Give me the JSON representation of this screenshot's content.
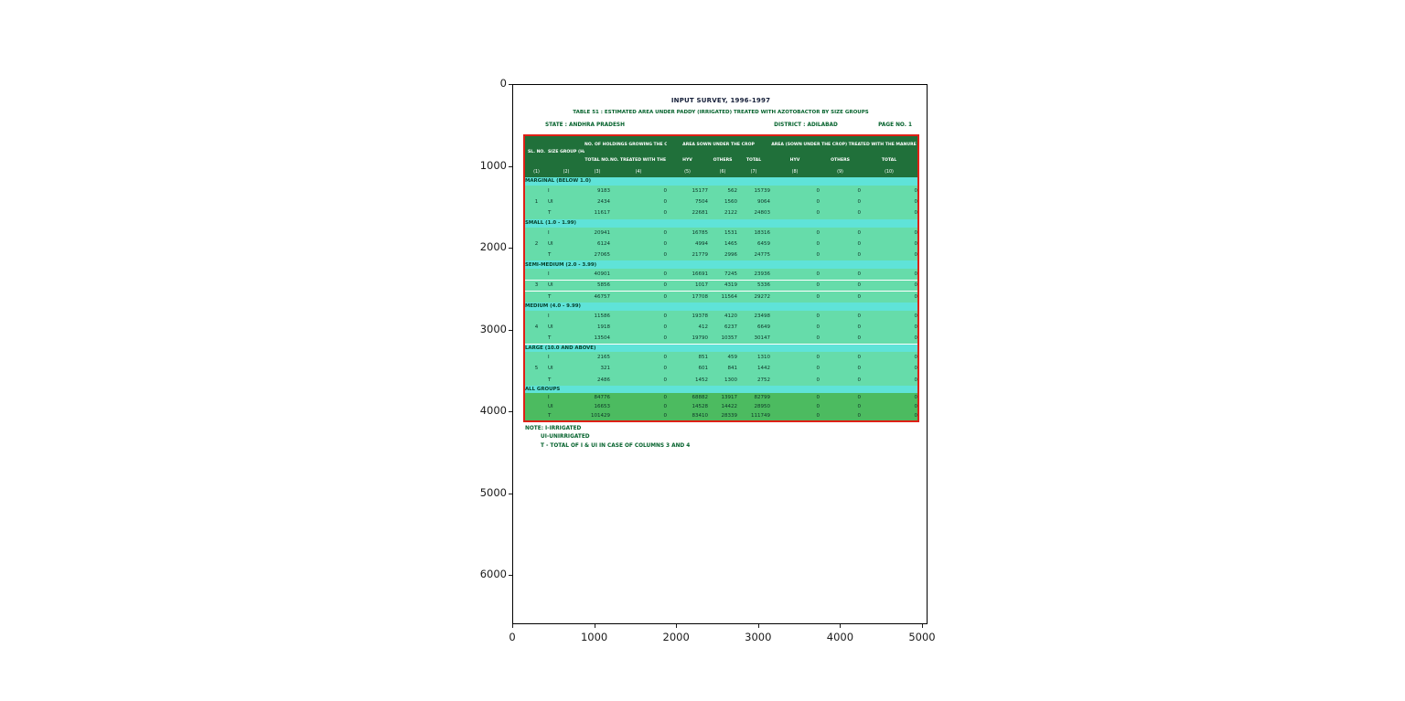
{
  "figure": {
    "x_ticks": [
      "0",
      "1000",
      "2000",
      "3000",
      "4000",
      "5000"
    ],
    "y_ticks": [
      "0",
      "1000",
      "2000",
      "3000",
      "4000",
      "5000",
      "6000"
    ]
  },
  "document": {
    "title": "INPUT SURVEY, 1996-1997",
    "subtitle": "TABLE 51 : ESTIMATED AREA UNDER PADDY (IRRIGATED) TREATED WITH AZOTOBACTOR BY SIZE GROUPS",
    "state": "STATE : ANDHRA PRADESH",
    "district": "DISTRICT : ADILABAD",
    "page": "PAGE NO. 1",
    "note_lines": [
      "NOTE: I-IRRIGATED",
      "UI-UNIRRIGATED",
      "T - TOTAL OF I & UI IN CASE OF COLUMNS 3 AND 4"
    ]
  },
  "table": {
    "header": {
      "sl_no": "SL. NO.",
      "size_group": "SIZE GROUP (HA.)",
      "holdings_group": "NO. OF HOLDINGS GROWING THE CROP",
      "total_no": "TOTAL NO.",
      "treated_no": "NO. TREATED WITH THE MANURE",
      "area_sown_group": "AREA SOWN UNDER THE CROP",
      "area_treated_group": "AREA (SOWN UNDER THE CROP) TREATED WITH THE MANURE",
      "hyv": "HYV",
      "others": "OTHERS",
      "total": "TOTAL",
      "column_numbers": [
        "(1)",
        "(2)",
        "(3)",
        "(4)",
        "(5)",
        "(6)",
        "(7)",
        "(8)",
        "(9)",
        "(10)"
      ]
    },
    "groups": [
      {
        "serial": "1",
        "title": "MARGINAL (BELOW 1.0)",
        "rows": [
          {
            "label": "I",
            "values": [
              "9183",
              "0",
              "15177",
              "562",
              "15739",
              "0",
              "0",
              "0"
            ]
          },
          {
            "label": "UI",
            "values": [
              "2434",
              "0",
              "7504",
              "1560",
              "9064",
              "0",
              "0",
              "0"
            ]
          },
          {
            "label": "T",
            "values": [
              "11617",
              "0",
              "22681",
              "2122",
              "24803",
              "0",
              "0",
              "0"
            ]
          }
        ]
      },
      {
        "serial": "2",
        "title": "SMALL (1.0 - 1.99)",
        "rows": [
          {
            "label": "I",
            "values": [
              "20941",
              "0",
              "16785",
              "1531",
              "18316",
              "0",
              "0",
              "0"
            ]
          },
          {
            "label": "UI",
            "values": [
              "6124",
              "0",
              "4994",
              "1465",
              "6459",
              "0",
              "0",
              "0"
            ]
          },
          {
            "label": "T",
            "values": [
              "27065",
              "0",
              "21779",
              "2996",
              "24775",
              "0",
              "0",
              "0"
            ]
          }
        ]
      },
      {
        "serial": "3",
        "title": "SEMI-MEDIUM (2.0 - 3.99)",
        "rows": [
          {
            "label": "I",
            "values": [
              "40901",
              "0",
              "16691",
              "7245",
              "23936",
              "0",
              "0",
              "0"
            ]
          },
          {
            "label": "UI",
            "values": [
              "5856",
              "0",
              "1017",
              "4319",
              "5336",
              "0",
              "0",
              "0"
            ]
          },
          {
            "label": "T",
            "values": [
              "46757",
              "0",
              "17708",
              "11564",
              "29272",
              "0",
              "0",
              "0"
            ]
          }
        ]
      },
      {
        "serial": "4",
        "title": "MEDIUM (4.0 - 9.99)",
        "rows": [
          {
            "label": "I",
            "values": [
              "11586",
              "0",
              "19378",
              "4120",
              "23498",
              "0",
              "0",
              "0"
            ]
          },
          {
            "label": "UI",
            "values": [
              "1918",
              "0",
              "412",
              "6237",
              "6649",
              "0",
              "0",
              "0"
            ]
          },
          {
            "label": "T",
            "values": [
              "13504",
              "0",
              "19790",
              "10357",
              "30147",
              "0",
              "0",
              "0"
            ]
          }
        ]
      },
      {
        "serial": "5",
        "title": "LARGE (10.0 AND ABOVE)",
        "rows": [
          {
            "label": "I",
            "values": [
              "2165",
              "0",
              "851",
              "459",
              "1310",
              "0",
              "0",
              "0"
            ]
          },
          {
            "label": "UI",
            "values": [
              "321",
              "0",
              "601",
              "841",
              "1442",
              "0",
              "0",
              "0"
            ]
          },
          {
            "label": "T",
            "values": [
              "2486",
              "0",
              "1452",
              "1300",
              "2752",
              "0",
              "0",
              "0"
            ]
          }
        ]
      },
      {
        "serial": "",
        "title": "ALL GROUPS",
        "all_groups": true,
        "rows": [
          {
            "label": "I",
            "values": [
              "84776",
              "0",
              "68882",
              "13917",
              "82799",
              "0",
              "0",
              "0"
            ]
          },
          {
            "label": "UI",
            "values": [
              "16653",
              "0",
              "14528",
              "14422",
              "28950",
              "0",
              "0",
              "0"
            ]
          },
          {
            "label": "T",
            "values": [
              "101429",
              "0",
              "83410",
              "28339",
              "111749",
              "0",
              "0",
              "0"
            ]
          }
        ]
      }
    ]
  },
  "colors": {
    "header_bg": "#20703a",
    "title_row_bg": "#5fe3d8",
    "data_row_bg": "#66dcaa",
    "all_groups_bg": "#4cbb60",
    "table_border": "#de2016",
    "green_text": "#04622c",
    "title_text": "#141e38"
  }
}
